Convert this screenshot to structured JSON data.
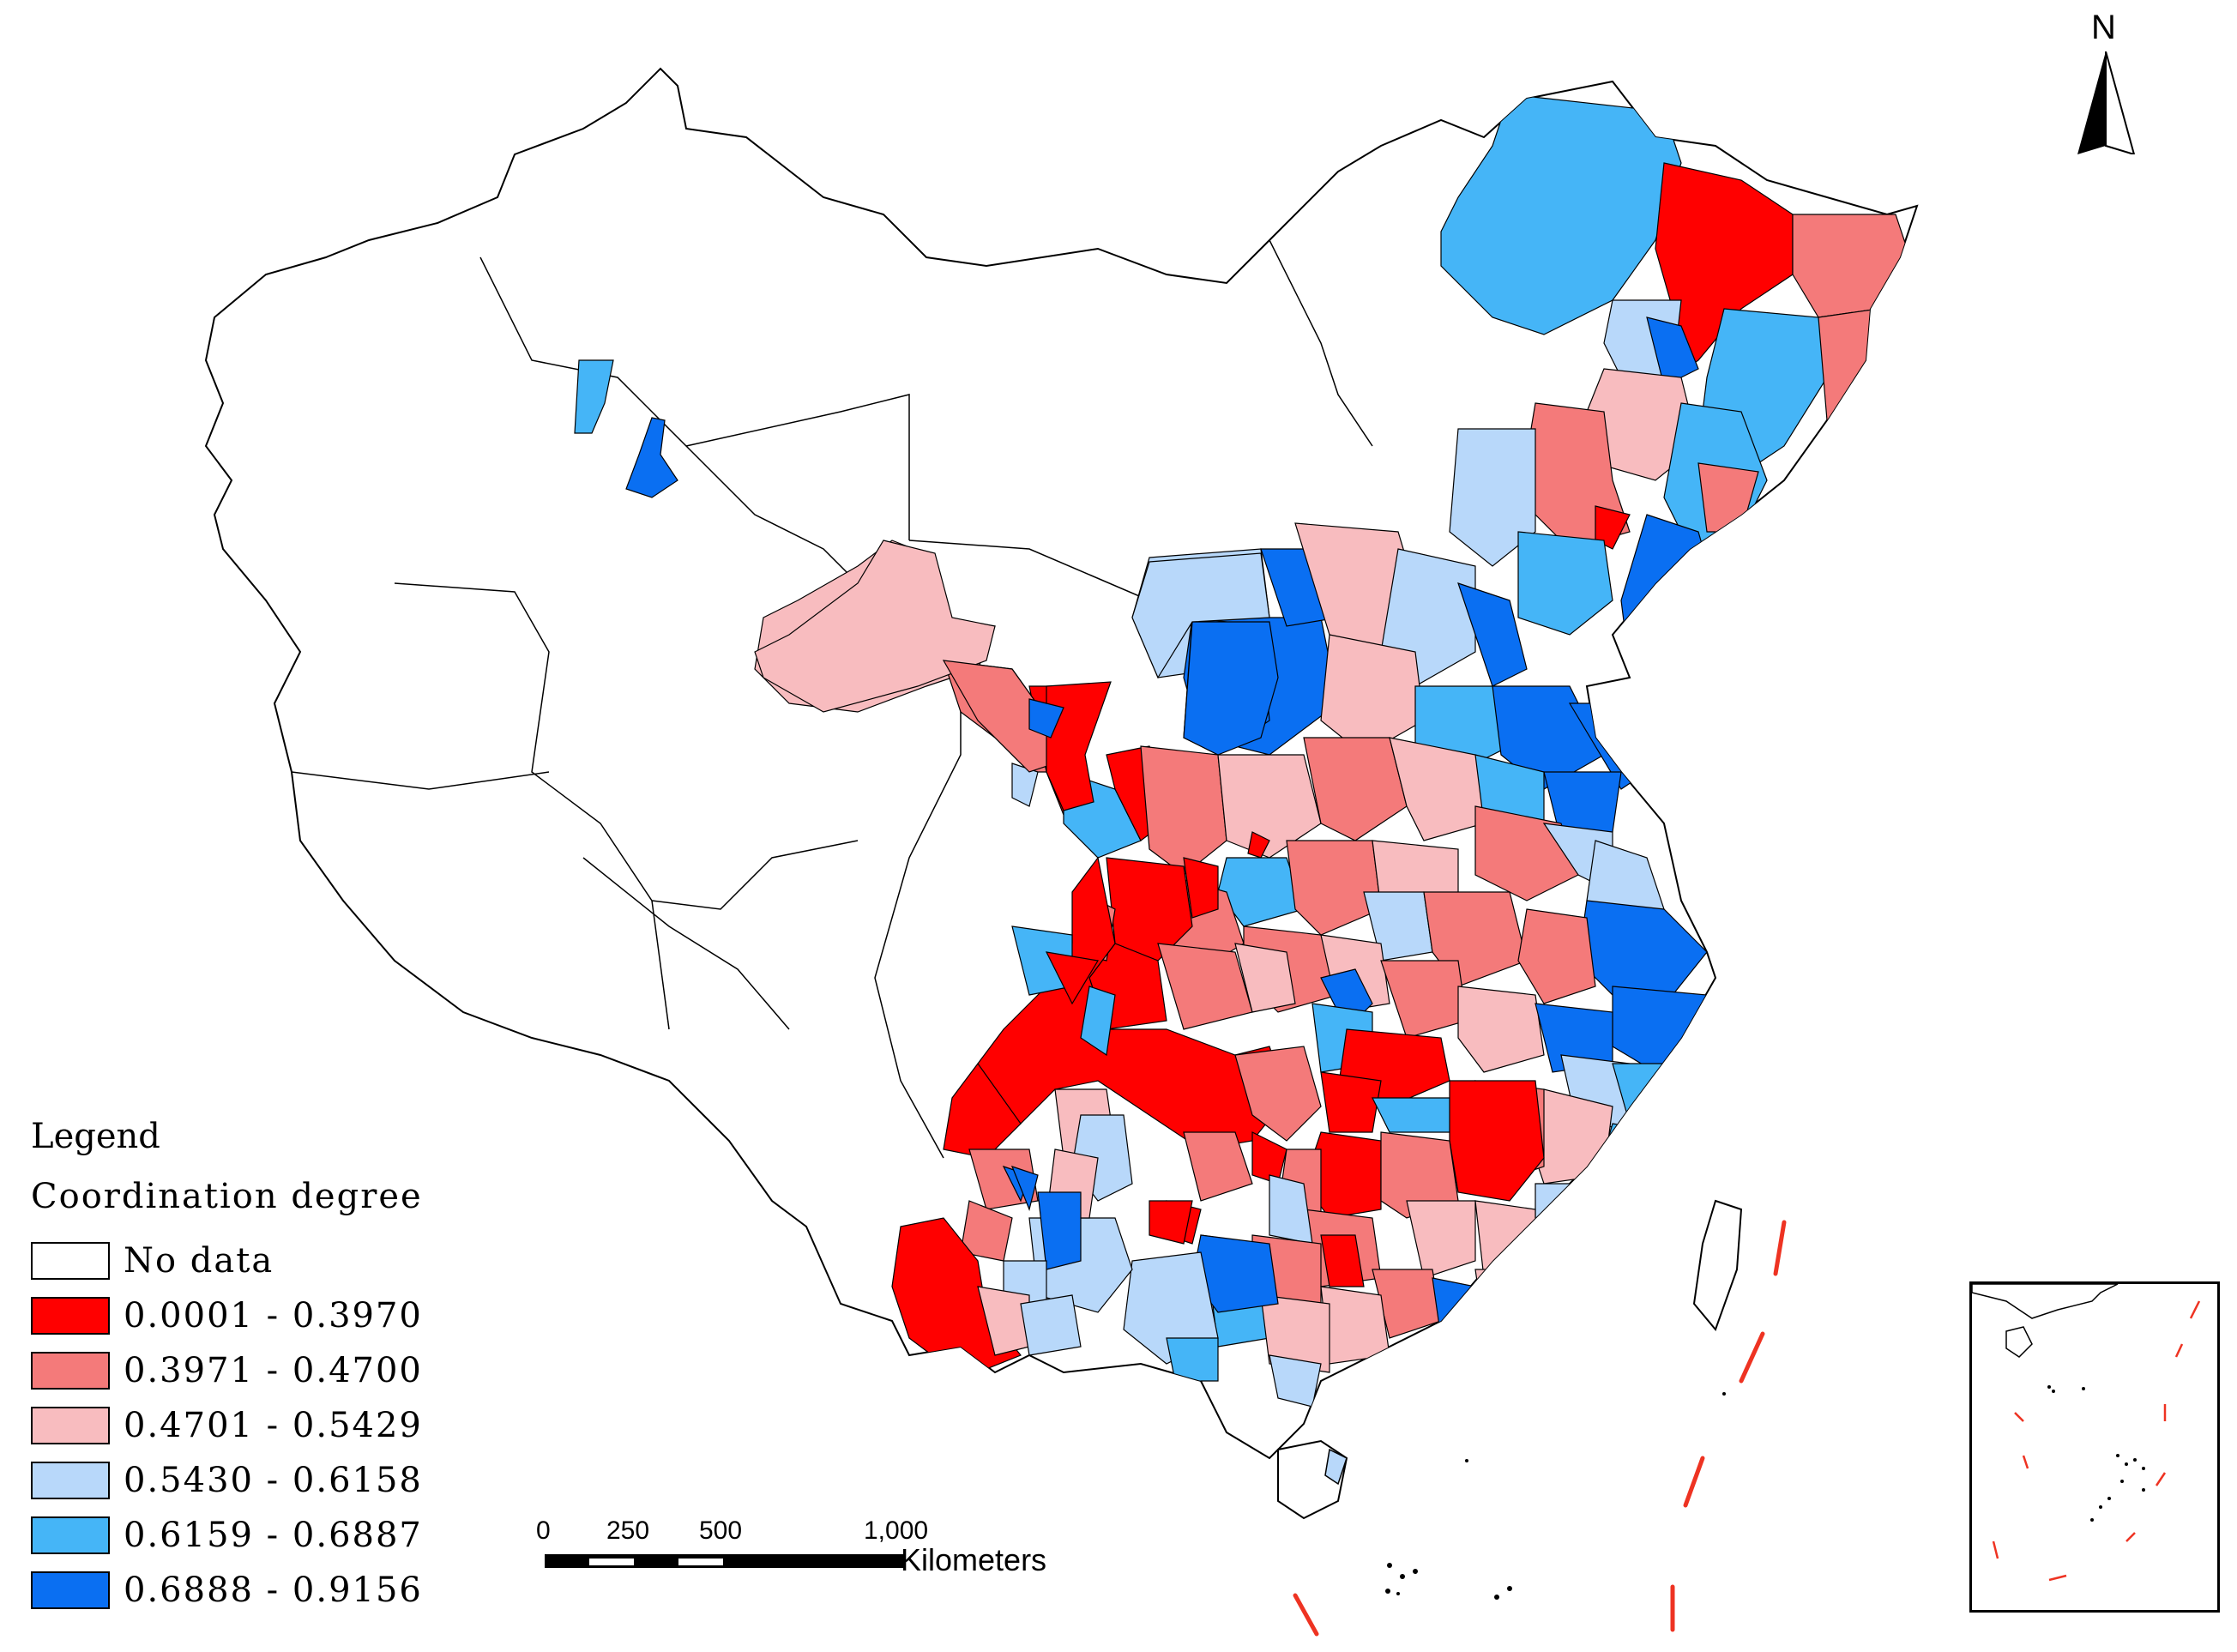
{
  "legend": {
    "title": "Legend",
    "subtitle": "Coordination degree",
    "items": [
      {
        "label": "No data",
        "color": "#ffffff"
      },
      {
        "label": "0.0001 - 0.3970",
        "color": "#ff0000"
      },
      {
        "label": "0.3971 - 0.4700",
        "color": "#f47a7a"
      },
      {
        "label": "0.4701 - 0.5429",
        "color": "#f8bcbf"
      },
      {
        "label": "0.5430 - 0.6158",
        "color": "#b8d8fa"
      },
      {
        "label": "0.6159 - 0.6887",
        "color": "#45b5f7"
      },
      {
        "label": "0.6888 - 0.9156",
        "color": "#0a6ff2"
      }
    ]
  },
  "scale_bar": {
    "ticks": [
      "0",
      "250",
      "500",
      "1,000"
    ],
    "units": "Kilometers"
  },
  "north_arrow": {
    "label": "N"
  }
}
